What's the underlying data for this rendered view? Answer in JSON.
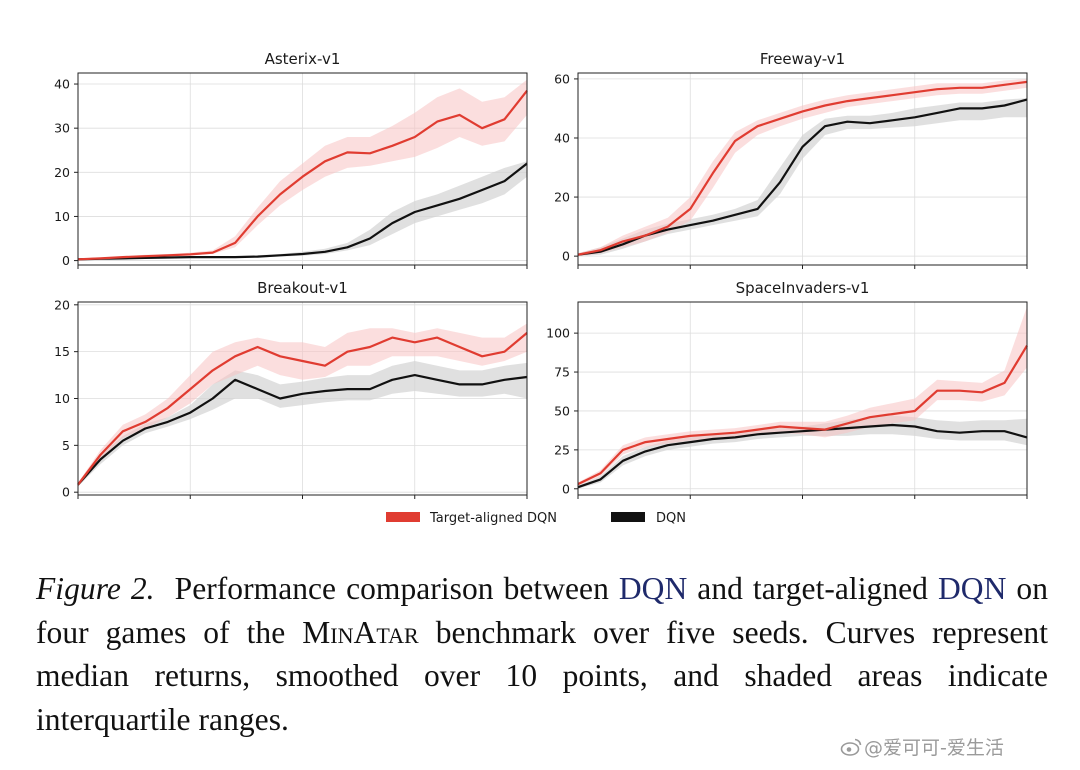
{
  "legend": [
    {
      "name": "Target-aligned DQN",
      "color": "#e03c31"
    },
    {
      "name": "DQN",
      "color": "#111111"
    }
  ],
  "caption": {
    "figure_label": "Figure 2.",
    "part1": "Performance comparison between ",
    "link1": "DQN",
    "part2": " and target-aligned ",
    "link2": "DQN",
    "part3": " on four games of the ",
    "benchmark": "MinAtar",
    "part4": " benchmark over five seeds. Curves represent median returns, smoothed over 10 points, and shaded areas indicate interquartile ranges."
  },
  "watermark": {
    "text": "@爱可可-爱生活",
    "icon": "weibo-icon"
  },
  "colors": {
    "tadqn": "#e03c31",
    "tadqn_band": "#f7c2c2",
    "dqn": "#111111",
    "dqn_band": "#d3d3d3",
    "grid": "#dddddd"
  },
  "chart_data": [
    {
      "type": "line",
      "title": "Asterix-v1",
      "xlabel": "",
      "ylabel": "",
      "xlim": [
        0,
        100
      ],
      "ylim": [
        -1,
        42.5
      ],
      "yticks": [
        0,
        10,
        20,
        30,
        40
      ],
      "grid": true,
      "x": [
        0,
        5,
        10,
        15,
        20,
        25,
        30,
        35,
        40,
        45,
        50,
        55,
        60,
        65,
        70,
        75,
        80,
        85,
        90,
        95,
        100
      ],
      "series": [
        {
          "name": "Target-aligned DQN",
          "values": [
            0.3,
            0.5,
            0.8,
            1.0,
            1.2,
            1.4,
            1.8,
            4,
            10,
            15,
            19,
            22.5,
            24.5,
            24.3,
            26,
            28,
            31.5,
            33,
            30,
            32,
            38.5
          ],
          "q1": [
            0.2,
            0.4,
            0.6,
            0.8,
            1.0,
            1.2,
            1.5,
            3,
            8,
            12.5,
            16,
            19,
            21,
            21.5,
            22.5,
            23.5,
            25.5,
            28,
            26,
            27,
            33
          ],
          "q3": [
            0.5,
            0.7,
            1.0,
            1.3,
            1.5,
            1.8,
            2.3,
            5.5,
            12,
            18,
            22,
            26,
            28,
            28,
            30.5,
            33.5,
            37,
            39,
            36,
            37,
            41
          ]
        },
        {
          "name": "DQN",
          "values": [
            0.3,
            0.4,
            0.5,
            0.6,
            0.7,
            0.8,
            0.8,
            0.8,
            0.9,
            1.2,
            1.5,
            2.0,
            3.0,
            5.0,
            8.5,
            11,
            12.5,
            14,
            16,
            18,
            22
          ],
          "q1": [
            0.2,
            0.3,
            0.4,
            0.5,
            0.5,
            0.6,
            0.6,
            0.6,
            0.7,
            0.9,
            1.1,
            1.5,
            2.3,
            3.5,
            6,
            8.5,
            10,
            11.5,
            13,
            15,
            19
          ],
          "q3": [
            0.4,
            0.5,
            0.6,
            0.7,
            0.8,
            0.9,
            1.0,
            1.0,
            1.2,
            1.5,
            2.0,
            2.7,
            4.0,
            7.0,
            11,
            13.5,
            15,
            17,
            19,
            21,
            22.5
          ]
        }
      ]
    },
    {
      "type": "line",
      "title": "Freeway-v1",
      "xlabel": "",
      "ylabel": "",
      "xlim": [
        0,
        100
      ],
      "ylim": [
        -3,
        62
      ],
      "yticks": [
        0,
        20,
        40,
        60
      ],
      "grid": true,
      "x": [
        0,
        5,
        10,
        15,
        20,
        25,
        30,
        35,
        40,
        45,
        50,
        55,
        60,
        65,
        70,
        75,
        80,
        85,
        90,
        95,
        100
      ],
      "series": [
        {
          "name": "Target-aligned DQN",
          "values": [
            0.5,
            2,
            5,
            7,
            10,
            16,
            28,
            39,
            44,
            46.5,
            49,
            51,
            52.5,
            53.5,
            54.5,
            55.5,
            56.5,
            57,
            57,
            58,
            59
          ],
          "q1": [
            0,
            1,
            3,
            5,
            8,
            12,
            23,
            35,
            41,
            44,
            46.5,
            48.5,
            50.5,
            51.5,
            52.5,
            53.5,
            54.5,
            55,
            55,
            56,
            57
          ],
          "q3": [
            1,
            3,
            7,
            10,
            13,
            20,
            32,
            42,
            46,
            48.5,
            51,
            53,
            54.5,
            55.5,
            56.5,
            57.5,
            58.5,
            58.5,
            58.5,
            59.5,
            60
          ]
        },
        {
          "name": "DQN",
          "values": [
            0.5,
            1.5,
            4,
            7,
            9,
            10.5,
            12,
            14,
            16,
            25,
            37,
            44,
            45.5,
            45,
            46,
            47,
            48.5,
            50,
            50,
            51,
            53
          ],
          "q1": [
            0,
            0.5,
            2.5,
            5,
            7.5,
            9,
            10.5,
            12,
            13.5,
            21,
            33,
            41,
            43,
            43,
            43.5,
            44,
            45,
            46,
            46,
            47,
            47
          ],
          "q3": [
            1,
            3,
            6,
            9,
            11,
            12.5,
            14,
            16,
            19,
            30,
            41,
            46.5,
            47.5,
            47.5,
            48.5,
            50,
            51,
            52,
            52,
            53,
            53.5
          ]
        }
      ]
    },
    {
      "type": "line",
      "title": "Breakout-v1",
      "xlabel": "",
      "ylabel": "",
      "xlim": [
        0,
        100
      ],
      "ylim": [
        -0.3,
        20.3
      ],
      "yticks": [
        0,
        5,
        10,
        15,
        20
      ],
      "grid": true,
      "x": [
        0,
        5,
        10,
        15,
        20,
        25,
        30,
        35,
        40,
        45,
        50,
        55,
        60,
        65,
        70,
        75,
        80,
        85,
        90,
        95,
        100
      ],
      "series": [
        {
          "name": "Target-aligned DQN",
          "values": [
            0.8,
            4,
            6.5,
            7.5,
            9,
            11,
            13,
            14.5,
            15.5,
            14.5,
            14,
            13.5,
            15,
            15.5,
            16.5,
            16,
            16.5,
            15.5,
            14.5,
            15,
            17
          ],
          "q1": [
            0.6,
            3.5,
            5.8,
            6.8,
            8,
            9.5,
            11.5,
            12.5,
            13.5,
            12.5,
            12,
            12.3,
            13.5,
            13.5,
            14.5,
            14.5,
            14.5,
            14,
            13.5,
            14,
            15
          ],
          "q3": [
            1.0,
            4.5,
            7.2,
            8.3,
            10,
            12.5,
            15,
            16,
            16.5,
            16,
            16,
            15.5,
            17,
            17.5,
            17.5,
            17,
            17.5,
            17,
            16.5,
            16.5,
            18
          ]
        },
        {
          "name": "DQN",
          "values": [
            0.8,
            3.5,
            5.5,
            6.8,
            7.5,
            8.5,
            10,
            12,
            11,
            10,
            10.5,
            10.8,
            11,
            11,
            12,
            12.5,
            12,
            11.5,
            11.5,
            12,
            12.3
          ],
          "q1": [
            0.6,
            3.0,
            5.0,
            6.3,
            7,
            7.8,
            8.8,
            10,
            10,
            9,
            9.3,
            9.6,
            9.8,
            9.8,
            10.5,
            10.8,
            10.5,
            10.2,
            10.2,
            10.5,
            10
          ],
          "q3": [
            1.0,
            4.0,
            6.0,
            7.3,
            8,
            9.3,
            11.5,
            13,
            12.5,
            11.5,
            11.8,
            12.2,
            12.5,
            12.5,
            13.5,
            14,
            13.5,
            13,
            13,
            13.5,
            13.8
          ]
        }
      ]
    },
    {
      "type": "line",
      "title": "SpaceInvaders-v1",
      "xlabel": "",
      "ylabel": "",
      "xlim": [
        0,
        100
      ],
      "ylim": [
        -4,
        120
      ],
      "yticks": [
        0,
        25,
        50,
        75,
        100
      ],
      "grid": true,
      "x": [
        0,
        5,
        10,
        15,
        20,
        25,
        30,
        35,
        40,
        45,
        50,
        55,
        60,
        65,
        70,
        75,
        80,
        85,
        90,
        95,
        100
      ],
      "series": [
        {
          "name": "Target-aligned DQN",
          "values": [
            3,
            10,
            25,
            30,
            32,
            34,
            35,
            36,
            38,
            40,
            39,
            38,
            42,
            46,
            48,
            50,
            63,
            63,
            62,
            68,
            92
          ],
          "q1": [
            2,
            8,
            22,
            27,
            29,
            31,
            32,
            33,
            35,
            36,
            35,
            33,
            36,
            40,
            42,
            44,
            57,
            57,
            56,
            60,
            78
          ],
          "q3": [
            4,
            12,
            28,
            33,
            35,
            37,
            38,
            39,
            41,
            43,
            43,
            43,
            47,
            52,
            55,
            58,
            70,
            69,
            68,
            76,
            117
          ]
        },
        {
          "name": "DQN",
          "values": [
            1,
            6,
            18,
            24,
            28,
            30,
            32,
            33,
            35,
            36,
            37,
            38,
            39,
            40,
            41,
            40,
            37,
            36,
            37,
            37,
            33
          ],
          "q1": [
            0,
            4,
            15,
            21,
            25,
            27,
            29,
            30,
            32,
            33,
            34,
            34,
            34,
            35,
            35,
            34,
            32,
            31,
            31,
            31,
            28
          ],
          "q3": [
            2,
            8,
            21,
            27,
            31,
            33,
            35,
            36,
            38,
            39,
            40,
            42,
            44,
            46,
            47,
            46,
            44,
            43,
            44,
            44,
            45
          ]
        }
      ]
    }
  ]
}
